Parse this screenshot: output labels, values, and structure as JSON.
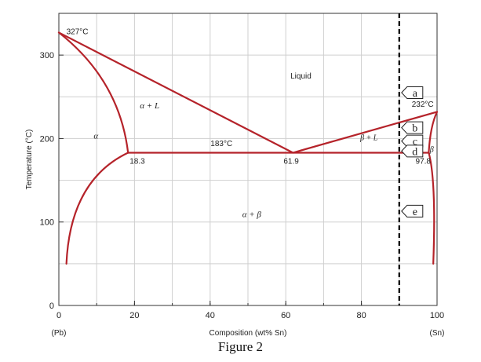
{
  "chart_data": {
    "type": "phase-diagram",
    "xlabel": "Composition (wt% Sn)",
    "ylabel": "Temperature (°C)",
    "xlim": [
      0,
      100
    ],
    "ylim": [
      0,
      350
    ],
    "x_ticks": [
      "0",
      "20",
      "40",
      "60",
      "80",
      "100"
    ],
    "y_ticks": [
      "0",
      "100",
      "200",
      "300"
    ],
    "x_end_labels": {
      "left": "(Pb)",
      "right": "(Sn)"
    },
    "grid": true,
    "phases": {
      "liquid": "Liquid",
      "alpha_liquid": "α + L",
      "alpha": "α",
      "alpha_beta": "α + β",
      "beta_liquid": "β + L",
      "beta": "β"
    },
    "annotations": {
      "pb_melt": "327°C",
      "sn_melt": "232°C",
      "eutectic_temp": "183°C",
      "alpha_limit": "18.3",
      "eutectic_comp": "61.9",
      "beta_limit": "97.8"
    },
    "reference_line_composition": 90,
    "points": [
      {
        "label": "a",
        "temperature": 255
      },
      {
        "label": "b",
        "temperature": 213
      },
      {
        "label": "c",
        "temperature": 197
      },
      {
        "label": "d",
        "temperature": 185
      },
      {
        "label": "e",
        "temperature": 113
      }
    ],
    "curves": {
      "liquidus_left": [
        [
          0,
          327
        ],
        [
          61.9,
          183
        ]
      ],
      "liquidus_right": [
        [
          61.9,
          183
        ],
        [
          100,
          232
        ]
      ],
      "eutectic_isotherm": [
        [
          18.3,
          183
        ],
        [
          97.8,
          183
        ]
      ],
      "alpha_solidus": [
        [
          0,
          327
        ],
        [
          18.3,
          183
        ]
      ],
      "alpha_solvus": [
        [
          18.3,
          183
        ],
        [
          2,
          50
        ]
      ],
      "beta_solidus": [
        [
          100,
          232
        ],
        [
          97.8,
          183
        ]
      ],
      "beta_solvus": [
        [
          97.8,
          183
        ],
        [
          99,
          50
        ]
      ]
    }
  },
  "caption": "Figure 2",
  "colors": {
    "curve": "#b5232a",
    "grid": "#cfcfcf",
    "axis": "#333333",
    "reference": "#000000"
  }
}
